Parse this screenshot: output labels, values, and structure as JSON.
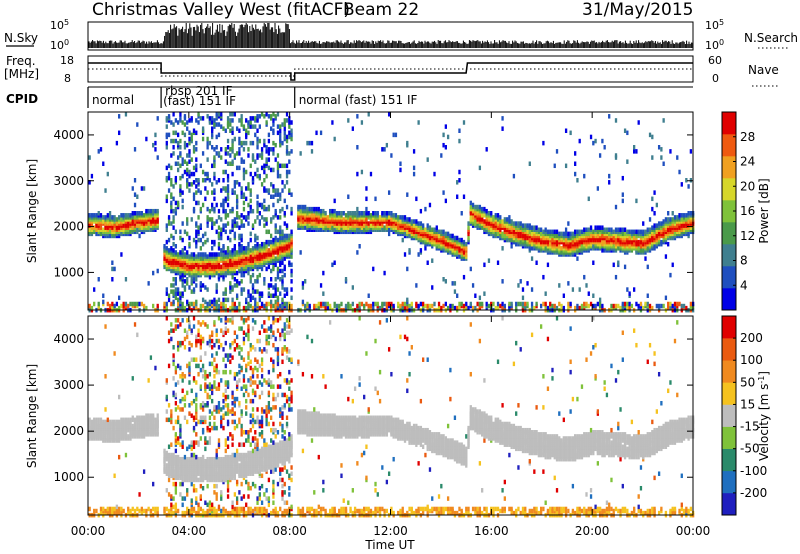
{
  "header": {
    "title": "Christmas Valley West (fitACF)",
    "beam": "Beam 22",
    "date": "31/May/2015"
  },
  "strip_labels": {
    "nsky": "N.Sky",
    "nsearch": "N.Search",
    "freq_line1": "Freq.",
    "freq_line2": "[MHz]",
    "nave": "Nave",
    "cpid": "CPID"
  },
  "noise_axis": {
    "left_ticks": [
      "10^5",
      "10^0"
    ],
    "right_ticks": [
      "10^5",
      "10^0"
    ]
  },
  "freq_axis": {
    "left_ticks": [
      "18",
      "8"
    ],
    "right_ticks": [
      "60",
      "0"
    ]
  },
  "cpid_segments": [
    {
      "label_line1": "normal",
      "label_line2": "",
      "start_h": 0.0
    },
    {
      "label_line1": "rbsp 201 IF",
      "label_line2": "(fast) 151 IF",
      "start_h": 2.9
    },
    {
      "label_line1": "normal (fast) 151 IF",
      "label_line2": "",
      "start_h": 8.2
    }
  ],
  "x_axis": {
    "title": "Time UT",
    "tick_labels": [
      "00:00",
      "04:00",
      "08:00",
      "12:00",
      "16:00",
      "20:00",
      "00:00"
    ]
  },
  "chart_data": [
    {
      "type": "heatmap",
      "title": "",
      "xlabel": "",
      "ylabel": "Slant Range [km]",
      "xlim_hours": [
        0,
        24
      ],
      "ylim": [
        180,
        4500
      ],
      "y_tick_labels": [
        "1000",
        "2000",
        "3000",
        "4000"
      ],
      "colorbar": {
        "label": "Power [dB]",
        "tick_labels": [
          "4",
          "8",
          "12",
          "16",
          "20",
          "24",
          "28"
        ],
        "range": [
          0,
          30
        ],
        "colors": [
          "#0000e6",
          "#1f4fbf",
          "#3f7f8f",
          "#4a9a4a",
          "#7fc23a",
          "#d6d62a",
          "#f0a020",
          "#ef5a10",
          "#e00000"
        ]
      },
      "echo_band": [
        {
          "t": 0.0,
          "center_km": 2050,
          "width_km": 450
        },
        {
          "t": 1.0,
          "center_km": 2000,
          "width_km": 450
        },
        {
          "t": 2.0,
          "center_km": 2100,
          "width_km": 450
        },
        {
          "t": 2.8,
          "center_km": 2150,
          "width_km": 450
        },
        {
          "t": 3.0,
          "center_km": 1300,
          "width_km": 500
        },
        {
          "t": 4.0,
          "center_km": 1150,
          "width_km": 500
        },
        {
          "t": 5.0,
          "center_km": 1150,
          "width_km": 500
        },
        {
          "t": 6.0,
          "center_km": 1250,
          "width_km": 500
        },
        {
          "t": 7.0,
          "center_km": 1400,
          "width_km": 500
        },
        {
          "t": 8.0,
          "center_km": 1600,
          "width_km": 500
        },
        {
          "t": 8.3,
          "center_km": 2200,
          "width_km": 500
        },
        {
          "t": 10.0,
          "center_km": 2100,
          "width_km": 450
        },
        {
          "t": 12.0,
          "center_km": 2100,
          "width_km": 400
        },
        {
          "t": 14.0,
          "center_km": 1700,
          "width_km": 450
        },
        {
          "t": 15.0,
          "center_km": 1450,
          "width_km": 400
        },
        {
          "t": 15.1,
          "center_km": 2300,
          "width_km": 500
        },
        {
          "t": 16.0,
          "center_km": 2050,
          "width_km": 500
        },
        {
          "t": 17.0,
          "center_km": 1850,
          "width_km": 500
        },
        {
          "t": 18.0,
          "center_km": 1700,
          "width_km": 500
        },
        {
          "t": 19.0,
          "center_km": 1600,
          "width_km": 500
        },
        {
          "t": 20.0,
          "center_km": 1750,
          "width_km": 500
        },
        {
          "t": 21.0,
          "center_km": 1700,
          "width_km": 500
        },
        {
          "t": 22.0,
          "center_km": 1650,
          "width_km": 500
        },
        {
          "t": 23.0,
          "center_km": 1950,
          "width_km": 500
        },
        {
          "t": 24.0,
          "center_km": 2100,
          "width_km": 450
        }
      ]
    },
    {
      "type": "heatmap",
      "title": "",
      "xlabel": "Time UT",
      "ylabel": "Slant Range [km]",
      "xlim_hours": [
        0,
        24
      ],
      "ylim": [
        180,
        4500
      ],
      "y_tick_labels": [
        "1000",
        "2000",
        "3000",
        "4000"
      ],
      "colorbar": {
        "label": "Velocity [m s^-1]",
        "tick_labels": [
          "200",
          "100",
          "50",
          "15",
          "-15",
          "-50",
          "-100",
          "-200"
        ],
        "range": [
          -250,
          250
        ],
        "colors": [
          "#1f1fbf",
          "#1f6fbf",
          "#2a8a6a",
          "#7fc23a",
          "#bdbdbd",
          "#f5c21f",
          "#f08a1f",
          "#ea5a10",
          "#e00000"
        ]
      },
      "ground_scatter_color": "#bdbdbd"
    }
  ]
}
